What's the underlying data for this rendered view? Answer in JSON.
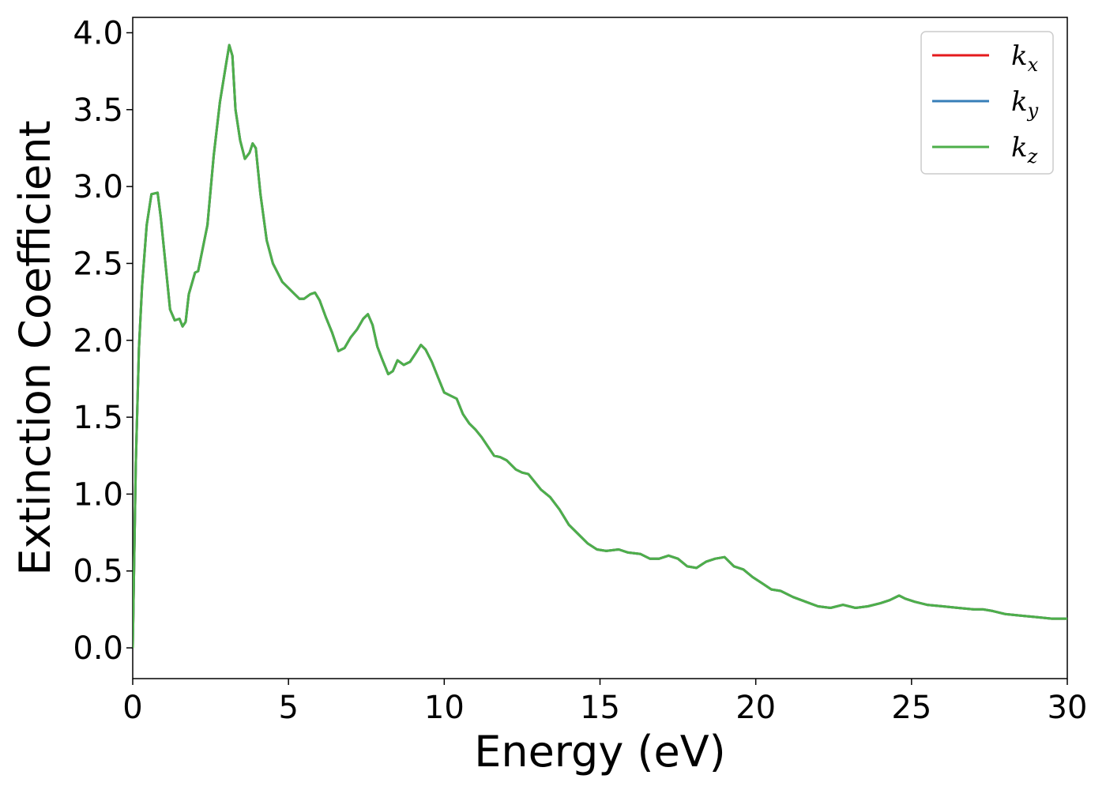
{
  "chart_data": {
    "type": "line",
    "xlabel": "Energy (eV)",
    "ylabel": "Extinction Coefficient",
    "xlim": [
      0,
      30
    ],
    "ylim": [
      -0.2,
      4.1
    ],
    "xticks": [
      0,
      5,
      10,
      15,
      20,
      25,
      30
    ],
    "xtick_labels": [
      "0",
      "5",
      "10",
      "15",
      "20",
      "25",
      "30"
    ],
    "yticks": [
      0.0,
      0.5,
      1.0,
      1.5,
      2.0,
      2.5,
      3.0,
      3.5,
      4.0
    ],
    "ytick_labels": [
      "0.0",
      "0.5",
      "1.0",
      "1.5",
      "2.0",
      "2.5",
      "3.0",
      "3.5",
      "4.0"
    ],
    "grid": false,
    "legend_position": "top-right",
    "series": [
      {
        "name": "k",
        "subscript": "x",
        "color": "#e41a1c",
        "ref": "shared"
      },
      {
        "name": "k",
        "subscript": "y",
        "color": "#377eb8",
        "ref": "shared"
      },
      {
        "name": "k",
        "subscript": "z",
        "color": "#4daf4a",
        "ref": "shared"
      }
    ],
    "x": [
      0,
      0.1,
      0.2,
      0.3,
      0.45,
      0.6,
      0.8,
      0.9,
      1.05,
      1.2,
      1.35,
      1.5,
      1.6,
      1.7,
      1.8,
      2.0,
      2.1,
      2.25,
      2.4,
      2.6,
      2.8,
      3.0,
      3.1,
      3.2,
      3.3,
      3.45,
      3.6,
      3.75,
      3.85,
      3.95,
      4.1,
      4.3,
      4.5,
      4.8,
      5.0,
      5.2,
      5.35,
      5.5,
      5.7,
      5.85,
      6.0,
      6.2,
      6.4,
      6.6,
      6.8,
      7.0,
      7.2,
      7.4,
      7.55,
      7.7,
      7.85,
      8.0,
      8.2,
      8.35,
      8.5,
      8.7,
      8.9,
      9.1,
      9.25,
      9.4,
      9.6,
      9.8,
      10.0,
      10.2,
      10.4,
      10.6,
      10.8,
      11.0,
      11.2,
      11.4,
      11.6,
      11.8,
      12.0,
      12.3,
      12.5,
      12.7,
      12.9,
      13.1,
      13.4,
      13.7,
      14.0,
      14.3,
      14.6,
      14.9,
      15.2,
      15.6,
      15.9,
      16.3,
      16.6,
      16.9,
      17.2,
      17.5,
      17.8,
      18.1,
      18.4,
      18.7,
      19.0,
      19.3,
      19.6,
      19.9,
      20.2,
      20.5,
      20.8,
      21.2,
      21.6,
      22.0,
      22.4,
      22.8,
      23.2,
      23.6,
      24.0,
      24.3,
      24.6,
      24.8,
      25.1,
      25.5,
      26.0,
      26.5,
      27.0,
      27.3,
      27.6,
      28.0,
      28.5,
      29.0,
      29.5,
      30.0
    ],
    "y": [
      0.0,
      1.2,
      1.95,
      2.35,
      2.75,
      2.95,
      2.96,
      2.8,
      2.5,
      2.2,
      2.13,
      2.14,
      2.09,
      2.12,
      2.3,
      2.44,
      2.45,
      2.6,
      2.75,
      3.2,
      3.55,
      3.8,
      3.92,
      3.85,
      3.5,
      3.3,
      3.18,
      3.22,
      3.28,
      3.25,
      2.95,
      2.65,
      2.5,
      2.38,
      2.34,
      2.3,
      2.27,
      2.27,
      2.3,
      2.31,
      2.26,
      2.15,
      2.05,
      1.93,
      1.95,
      2.02,
      2.07,
      2.14,
      2.17,
      2.1,
      1.96,
      1.88,
      1.78,
      1.8,
      1.87,
      1.84,
      1.86,
      1.92,
      1.97,
      1.94,
      1.86,
      1.76,
      1.66,
      1.64,
      1.62,
      1.52,
      1.46,
      1.42,
      1.37,
      1.31,
      1.25,
      1.24,
      1.22,
      1.16,
      1.14,
      1.13,
      1.08,
      1.03,
      0.98,
      0.9,
      0.8,
      0.74,
      0.68,
      0.64,
      0.63,
      0.64,
      0.62,
      0.61,
      0.58,
      0.58,
      0.6,
      0.58,
      0.53,
      0.52,
      0.56,
      0.58,
      0.59,
      0.53,
      0.51,
      0.46,
      0.42,
      0.38,
      0.37,
      0.33,
      0.3,
      0.27,
      0.26,
      0.28,
      0.26,
      0.27,
      0.29,
      0.31,
      0.34,
      0.32,
      0.3,
      0.28,
      0.27,
      0.26,
      0.25,
      0.25,
      0.24,
      0.22,
      0.21,
      0.2,
      0.19,
      0.19
    ]
  }
}
